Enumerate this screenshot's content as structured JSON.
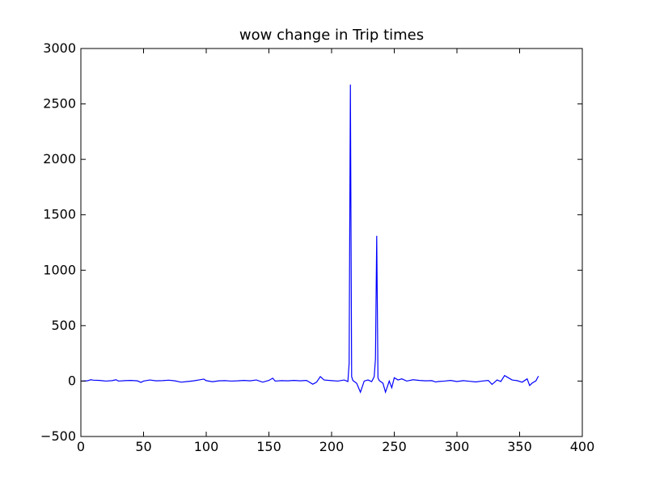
{
  "chart_data": {
    "type": "line",
    "title": "wow change in Trip times",
    "xlabel": "",
    "ylabel": "",
    "xlim": [
      0,
      400
    ],
    "ylim": [
      -500,
      3000
    ],
    "x_ticks": [
      0,
      50,
      100,
      150,
      200,
      250,
      300,
      350,
      400
    ],
    "y_ticks": [
      -500,
      0,
      500,
      1000,
      1500,
      2000,
      2500,
      3000
    ],
    "x_tick_labels": [
      "0",
      "50",
      "100",
      "150",
      "200",
      "250",
      "300",
      "350",
      "400"
    ],
    "y_tick_labels": [
      "−500",
      "0",
      "500",
      "1000",
      "1500",
      "2000",
      "2500",
      "3000"
    ],
    "grid": false,
    "series": [
      {
        "color": "#0000ff",
        "points": [
          [
            0,
            0
          ],
          [
            5,
            2
          ],
          [
            8,
            12
          ],
          [
            10,
            8
          ],
          [
            15,
            6
          ],
          [
            20,
            0
          ],
          [
            25,
            4
          ],
          [
            28,
            12
          ],
          [
            30,
            0
          ],
          [
            35,
            4
          ],
          [
            40,
            6
          ],
          [
            45,
            2
          ],
          [
            48,
            -12
          ],
          [
            50,
            0
          ],
          [
            55,
            10
          ],
          [
            60,
            2
          ],
          [
            65,
            4
          ],
          [
            70,
            8
          ],
          [
            75,
            2
          ],
          [
            80,
            -10
          ],
          [
            85,
            -4
          ],
          [
            90,
            2
          ],
          [
            95,
            12
          ],
          [
            98,
            18
          ],
          [
            100,
            4
          ],
          [
            105,
            -6
          ],
          [
            110,
            2
          ],
          [
            115,
            4
          ],
          [
            120,
            0
          ],
          [
            125,
            2
          ],
          [
            130,
            6
          ],
          [
            135,
            2
          ],
          [
            140,
            10
          ],
          [
            145,
            -10
          ],
          [
            150,
            6
          ],
          [
            153,
            26
          ],
          [
            155,
            0
          ],
          [
            160,
            4
          ],
          [
            165,
            2
          ],
          [
            170,
            6
          ],
          [
            175,
            2
          ],
          [
            180,
            6
          ],
          [
            185,
            -28
          ],
          [
            188,
            -10
          ],
          [
            191,
            40
          ],
          [
            194,
            10
          ],
          [
            200,
            4
          ],
          [
            205,
            0
          ],
          [
            210,
            10
          ],
          [
            213,
            -4
          ],
          [
            214,
            160
          ],
          [
            215,
            2675
          ],
          [
            216,
            40
          ],
          [
            217,
            5
          ],
          [
            220,
            -20
          ],
          [
            223,
            -100
          ],
          [
            226,
            0
          ],
          [
            229,
            10
          ],
          [
            232,
            -5
          ],
          [
            234,
            40
          ],
          [
            235,
            200
          ],
          [
            236,
            1310
          ],
          [
            237,
            30
          ],
          [
            238,
            5
          ],
          [
            241,
            -20
          ],
          [
            243,
            -100
          ],
          [
            246,
            0
          ],
          [
            248,
            -60
          ],
          [
            250,
            30
          ],
          [
            253,
            10
          ],
          [
            256,
            20
          ],
          [
            260,
            0
          ],
          [
            265,
            12
          ],
          [
            270,
            6
          ],
          [
            275,
            2
          ],
          [
            280,
            4
          ],
          [
            283,
            -8
          ],
          [
            285,
            -4
          ],
          [
            290,
            0
          ],
          [
            295,
            6
          ],
          [
            300,
            -4
          ],
          [
            305,
            4
          ],
          [
            310,
            -2
          ],
          [
            315,
            -8
          ],
          [
            320,
            0
          ],
          [
            325,
            6
          ],
          [
            328,
            -30
          ],
          [
            332,
            10
          ],
          [
            335,
            -4
          ],
          [
            338,
            50
          ],
          [
            341,
            30
          ],
          [
            344,
            10
          ],
          [
            348,
            4
          ],
          [
            352,
            -10
          ],
          [
            356,
            20
          ],
          [
            358,
            -40
          ],
          [
            360,
            -18
          ],
          [
            363,
            2
          ],
          [
            365,
            45
          ]
        ]
      }
    ]
  }
}
